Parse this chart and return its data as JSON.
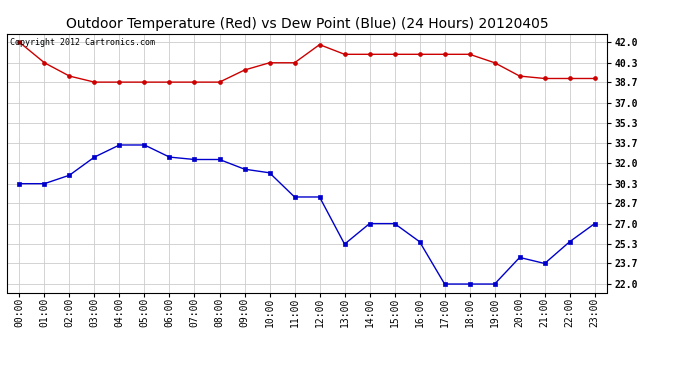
{
  "title": "Outdoor Temperature (Red) vs Dew Point (Blue) (24 Hours) 20120405",
  "copyright_text": "Copyright 2012 Cartronics.com",
  "x_labels": [
    "00:00",
    "01:00",
    "02:00",
    "03:00",
    "04:00",
    "05:00",
    "06:00",
    "07:00",
    "08:00",
    "09:00",
    "10:00",
    "11:00",
    "12:00",
    "13:00",
    "14:00",
    "15:00",
    "16:00",
    "17:00",
    "18:00",
    "19:00",
    "20:00",
    "21:00",
    "22:00",
    "23:00"
  ],
  "temp_red": [
    42.0,
    40.3,
    39.2,
    38.7,
    38.7,
    38.7,
    38.7,
    38.7,
    38.7,
    39.7,
    40.3,
    40.3,
    41.8,
    41.0,
    41.0,
    41.0,
    41.0,
    41.0,
    41.0,
    40.3,
    39.2,
    39.0,
    39.0,
    39.0
  ],
  "dew_blue": [
    30.3,
    30.3,
    31.0,
    32.5,
    33.5,
    33.5,
    32.5,
    32.3,
    32.3,
    31.5,
    31.2,
    29.2,
    29.2,
    25.3,
    27.0,
    27.0,
    25.5,
    22.0,
    22.0,
    22.0,
    24.2,
    23.7,
    25.5,
    27.0
  ],
  "y_ticks": [
    22.0,
    23.7,
    25.3,
    27.0,
    28.7,
    30.3,
    32.0,
    33.7,
    35.3,
    37.0,
    38.7,
    40.3,
    42.0
  ],
  "ylim": [
    21.3,
    42.7
  ],
  "red_color": "#cc0000",
  "blue_color": "#0000cc",
  "grid_color": "#cccccc",
  "bg_color": "#ffffff",
  "title_fontsize": 10,
  "copyright_fontsize": 6,
  "tick_fontsize": 7
}
